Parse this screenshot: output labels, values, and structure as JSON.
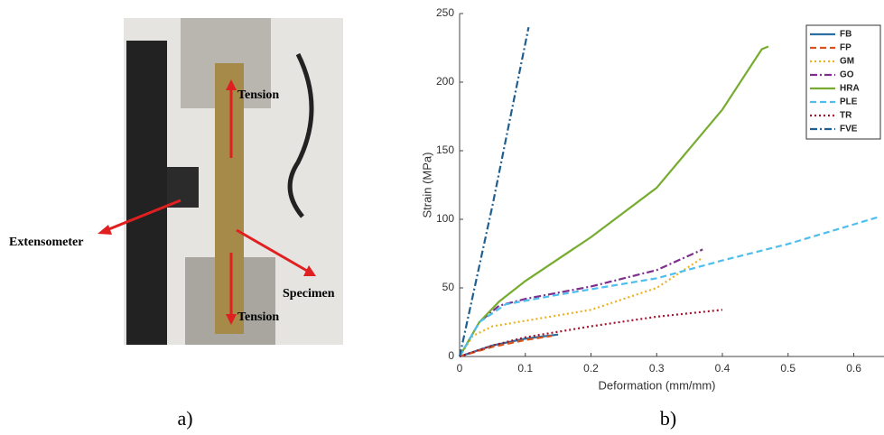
{
  "panel_a": {
    "labels": [
      "Tension",
      "Tension",
      "Extensometer",
      "Specimen"
    ],
    "caption": "a)"
  },
  "panel_b": {
    "caption": "b)"
  },
  "chart_data": {
    "type": "line",
    "xlabel": "Deformation (mm/mm)",
    "ylabel": "Strain (MPa)",
    "xlim": [
      0,
      0.646
    ],
    "ylim": [
      0,
      250
    ],
    "xticks": [
      0,
      0.1,
      0.2,
      0.3,
      0.4,
      0.5,
      0.6
    ],
    "yticks": [
      0,
      50,
      100,
      150,
      200,
      250
    ],
    "legend": "upper right",
    "series": [
      {
        "name": "FB",
        "color": "#2a6fa0",
        "linestyle": "solid",
        "x": [
          0,
          0.05,
          0.1,
          0.15
        ],
        "values": [
          0,
          8,
          13,
          16
        ]
      },
      {
        "name": "FP",
        "color": "#d95319",
        "linestyle": "dashed",
        "x": [
          0,
          0.05,
          0.1,
          0.14
        ],
        "values": [
          0,
          7,
          12,
          15
        ]
      },
      {
        "name": "GM",
        "color": "#edb120",
        "linestyle": "dotted",
        "x": [
          0,
          0.02,
          0.05,
          0.1,
          0.2,
          0.3,
          0.37
        ],
        "values": [
          0,
          15,
          22,
          26,
          34,
          50,
          72
        ]
      },
      {
        "name": "GO",
        "color": "#7e2f8e",
        "linestyle": "dashdot",
        "x": [
          0,
          0.03,
          0.06,
          0.1,
          0.2,
          0.3,
          0.37
        ],
        "values": [
          0,
          25,
          37,
          42,
          51,
          63,
          78
        ]
      },
      {
        "name": "HRA",
        "color": "#77ac30",
        "linestyle": "solid",
        "x": [
          0,
          0.03,
          0.06,
          0.1,
          0.2,
          0.3,
          0.4,
          0.46,
          0.47
        ],
        "values": [
          0,
          25,
          40,
          55,
          87,
          123,
          180,
          224,
          226
        ]
      },
      {
        "name": "PLE",
        "color": "#4dbeee",
        "linestyle": "dashed",
        "x": [
          0,
          0.03,
          0.07,
          0.15,
          0.3,
          0.4,
          0.5,
          0.64
        ],
        "values": [
          0,
          25,
          38,
          45,
          57,
          70,
          82,
          102
        ]
      },
      {
        "name": "TR",
        "color": "#a2142f",
        "linestyle": "dotted",
        "x": [
          0,
          0.05,
          0.1,
          0.2,
          0.3,
          0.4
        ],
        "values": [
          0,
          8,
          14,
          22,
          29,
          34
        ]
      },
      {
        "name": "FVE",
        "color": "#1f5f8f",
        "linestyle": "dashdot",
        "x": [
          0,
          0.05,
          0.105
        ],
        "values": [
          0,
          110,
          240
        ]
      }
    ]
  }
}
